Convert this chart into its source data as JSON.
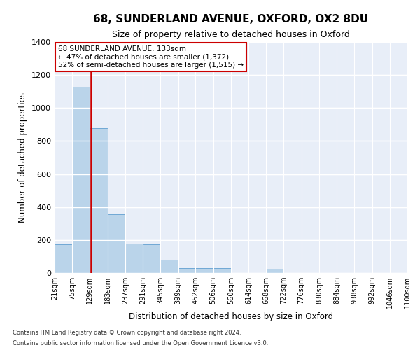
{
  "title": "68, SUNDERLAND AVENUE, OXFORD, OX2 8DU",
  "subtitle": "Size of property relative to detached houses in Oxford",
  "xlabel": "Distribution of detached houses by size in Oxford",
  "ylabel": "Number of detached properties",
  "footnote1": "Contains HM Land Registry data © Crown copyright and database right 2024.",
  "footnote2": "Contains public sector information licensed under the Open Government Licence v3.0.",
  "annotation_line1": "68 SUNDERLAND AVENUE: 133sqm",
  "annotation_line2": "← 47% of detached houses are smaller (1,372)",
  "annotation_line3": "52% of semi-detached houses are larger (1,515) →",
  "property_size": 133,
  "bins": [
    21,
    75,
    129,
    183,
    237,
    291,
    345,
    399,
    452,
    506,
    560,
    614,
    668,
    722,
    776,
    830,
    884,
    938,
    992,
    1046,
    1100
  ],
  "bar_heights": [
    175,
    1130,
    880,
    355,
    180,
    175,
    80,
    30,
    30,
    30,
    0,
    0,
    25,
    0,
    0,
    0,
    0,
    0,
    0,
    0
  ],
  "bar_color": "#bad4ea",
  "bar_edge_color": "#6fa8d5",
  "line_color": "#cc0000",
  "background_color": "#e8eef8",
  "grid_color": "#ffffff",
  "ylim": [
    0,
    1400
  ],
  "yticks": [
    0,
    200,
    400,
    600,
    800,
    1000,
    1200,
    1400
  ],
  "title_fontsize": 11,
  "subtitle_fontsize": 9,
  "label_fontsize": 8.5,
  "tick_fontsize": 8,
  "annotation_fontsize": 7.5,
  "annotation_box_color": "#ffffff",
  "annotation_box_edgecolor": "#cc0000",
  "footnote_fontsize": 6
}
